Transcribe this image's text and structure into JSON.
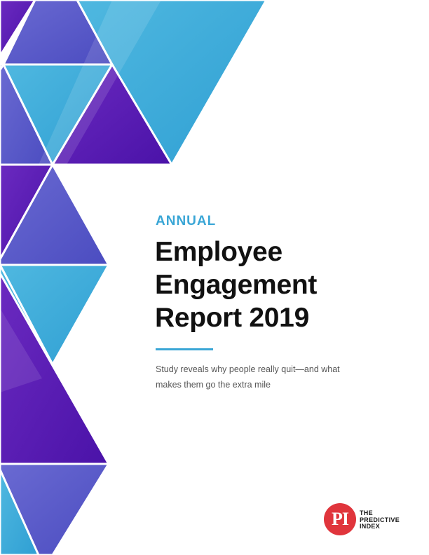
{
  "cover": {
    "eyebrow": "ANNUAL",
    "title_lines": [
      "Employee",
      "Engagement",
      "Report 2019"
    ],
    "subtitle_lines": [
      "Study reveals why people really quit—and what",
      "makes them go the extra mile"
    ]
  },
  "brand": {
    "logo_mark": "PI",
    "logo_text_lines": [
      "THE",
      "PREDICTIVE",
      "INDEX"
    ]
  },
  "colors": {
    "accent": "#3aa6d6",
    "title": "#111111",
    "subtitle": "#555555",
    "logo_red": "#e0353c",
    "triangle_cyan": "#35aad9",
    "triangle_indigo": "#5a55c8",
    "triangle_purple": "#5a19b0"
  },
  "icons": [
    "predictive-index-logo-icon"
  ]
}
